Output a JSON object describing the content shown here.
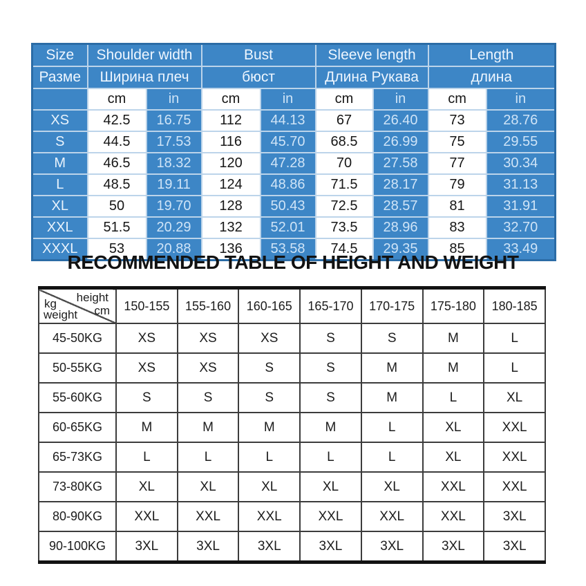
{
  "chart_data": [
    {
      "type": "table",
      "name": "garment-size-measurements",
      "groups": [
        {
          "en": "Size",
          "ru": "Разме"
        },
        {
          "en": "Shoulder width",
          "ru": "Ширина плеч"
        },
        {
          "en": "Bust",
          "ru": "бюст"
        },
        {
          "en": "Sleeve length",
          "ru": "Длина Рукава"
        },
        {
          "en": "Length",
          "ru": "длина"
        }
      ],
      "units": {
        "cm": "cm",
        "in": "in"
      },
      "rows": [
        [
          "XS",
          "42.5",
          "16.75",
          "112",
          "44.13",
          "67",
          "26.40",
          "73",
          "28.76"
        ],
        [
          "S",
          "44.5",
          "17.53",
          "116",
          "45.70",
          "68.5",
          "26.99",
          "75",
          "29.55"
        ],
        [
          "M",
          "46.5",
          "18.32",
          "120",
          "47.28",
          "70",
          "27.58",
          "77",
          "30.34"
        ],
        [
          "L",
          "48.5",
          "19.11",
          "124",
          "48.86",
          "71.5",
          "28.17",
          "79",
          "31.13"
        ],
        [
          "XL",
          "50",
          "19.70",
          "128",
          "50.43",
          "72.5",
          "28.57",
          "81",
          "31.91"
        ],
        [
          "XXL",
          "51.5",
          "20.29",
          "132",
          "52.01",
          "73.5",
          "28.96",
          "83",
          "32.70"
        ],
        [
          "XXXL",
          "53",
          "20.88",
          "136",
          "53.58",
          "74.5",
          "29.35",
          "85",
          "33.49"
        ]
      ]
    },
    {
      "type": "table",
      "name": "recommended-size-by-height-and-weight",
      "title": "RECOMMENDED TABLE OF HEIGHT AND WEIGHT",
      "corner": {
        "height_label": "height",
        "cm_label": "cm",
        "kg_label": "kg",
        "weight_label": "weight"
      },
      "height_columns": [
        "150-155",
        "155-160",
        "160-165",
        "165-170",
        "170-175",
        "175-180",
        "180-185"
      ],
      "rows": [
        {
          "weight": "45-50KG",
          "sizes": [
            "XS",
            "XS",
            "XS",
            "S",
            "S",
            "M",
            "L"
          ]
        },
        {
          "weight": "50-55KG",
          "sizes": [
            "XS",
            "XS",
            "S",
            "S",
            "M",
            "M",
            "L"
          ]
        },
        {
          "weight": "55-60KG",
          "sizes": [
            "S",
            "S",
            "S",
            "S",
            "M",
            "L",
            "XL"
          ]
        },
        {
          "weight": "60-65KG",
          "sizes": [
            "M",
            "M",
            "M",
            "M",
            "L",
            "XL",
            "XXL"
          ]
        },
        {
          "weight": "65-73KG",
          "sizes": [
            "L",
            "L",
            "L",
            "L",
            "L",
            "XL",
            "XXL"
          ]
        },
        {
          "weight": "73-80KG",
          "sizes": [
            "XL",
            "XL",
            "XL",
            "XL",
            "XL",
            "XXL",
            "XXL"
          ]
        },
        {
          "weight": "80-90KG",
          "sizes": [
            "XXL",
            "XXL",
            "XXL",
            "XXL",
            "XXL",
            "XXL",
            "3XL"
          ]
        },
        {
          "weight": "90-100KG",
          "sizes": [
            "3XL",
            "3XL",
            "3XL",
            "3XL",
            "3XL",
            "3XL",
            "3XL"
          ]
        }
      ]
    }
  ],
  "colors": {
    "table_blue": "#3d86c6",
    "table_blue_border": "#2b6ca6",
    "grid_light_blue": "#bcd4ea",
    "light_blue_text": "#cfe4f7",
    "header_text": "#eef6ff",
    "white_cell": "#ffffff",
    "dark_text": "#161616",
    "bottom_table_border": "#131313",
    "bottom_grid": "#3c3c3c"
  }
}
